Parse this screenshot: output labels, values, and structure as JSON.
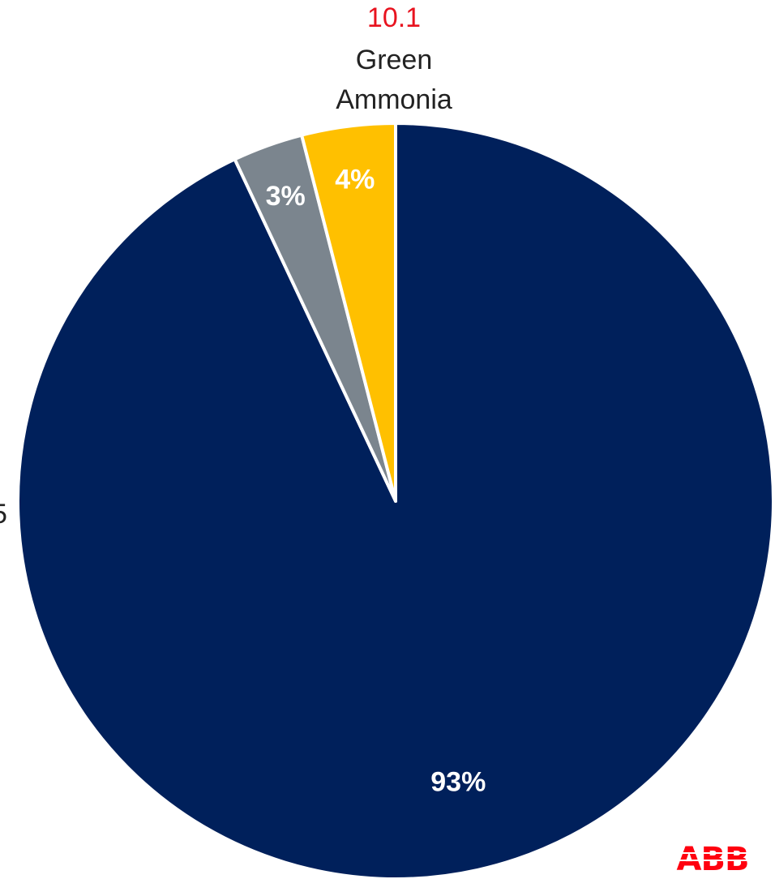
{
  "chart_data": {
    "type": "pie",
    "categories": [
      "",
      "",
      "Green Ammonia"
    ],
    "percent_labels": [
      "93%",
      "3%",
      "4%"
    ],
    "values": [
      93,
      3,
      4
    ],
    "colors": [
      "#00205b",
      "#7b858e",
      "#ffc000"
    ],
    "start_angle_deg": 0,
    "direction": "clockwise",
    "callouts": [
      {
        "value": "10.1",
        "name_lines": [
          "Green",
          "Ammonia"
        ],
        "value_color": "#e8131f"
      }
    ],
    "partial_left_label": "5",
    "legend": "none"
  },
  "logo": {
    "text": "ABB",
    "color": "#ff000f"
  }
}
